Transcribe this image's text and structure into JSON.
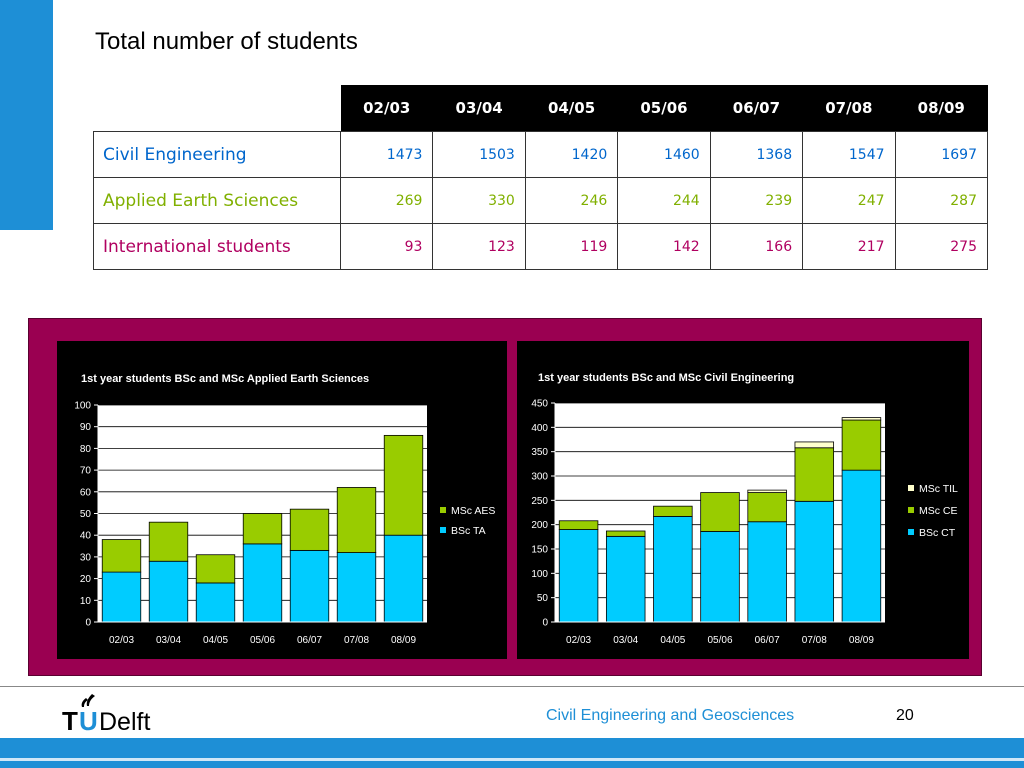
{
  "slide": {
    "title": "Total number of students",
    "footer_text": "Civil Engineering and Geosciences",
    "page_number": "20",
    "logo_text": "TUDelft"
  },
  "colors": {
    "accent_blue": "#1e8fd6",
    "panel": "#9a0051",
    "cyan": "#00ccff",
    "green": "#99cc00",
    "cream": "#ffffcc",
    "civil_text": "#0066cc",
    "aes_text": "#80b000",
    "intl_text": "#b00060"
  },
  "table": {
    "columns": [
      "02/03",
      "03/04",
      "04/05",
      "05/06",
      "06/07",
      "07/08",
      "08/09"
    ],
    "rows": [
      {
        "label": "Civil Engineering",
        "values": [
          "1473",
          "1503",
          "1420",
          "1460",
          "1368",
          "1547",
          "1697"
        ]
      },
      {
        "label": "Applied Earth Sciences",
        "values": [
          "269",
          "330",
          "246",
          "244",
          "239",
          "247",
          "287"
        ]
      },
      {
        "label": "International students",
        "values": [
          "93",
          "123",
          "119",
          "142",
          "166",
          "217",
          "275"
        ]
      }
    ]
  },
  "chart_data": [
    {
      "type": "bar",
      "stacked": true,
      "title": "1st year students BSc and MSc Applied Earth Sciences",
      "categories": [
        "02/03",
        "03/04",
        "04/05",
        "05/06",
        "06/07",
        "07/08",
        "08/09"
      ],
      "series": [
        {
          "name": "BSc TA",
          "color": "#00ccff",
          "values": [
            23,
            28,
            18,
            36,
            33,
            32,
            40
          ]
        },
        {
          "name": "MSc AES",
          "color": "#99cc00",
          "values": [
            15,
            18,
            13,
            14,
            19,
            30,
            46
          ]
        }
      ],
      "ylim": [
        0,
        100
      ],
      "yticks": [
        "0",
        "10",
        "20",
        "30",
        "40",
        "50",
        "60",
        "70",
        "80",
        "90",
        "100"
      ],
      "grid": true,
      "legend": "right"
    },
    {
      "type": "bar",
      "stacked": true,
      "title": "1st year students BSc and MSc Civil Engineering",
      "categories": [
        "02/03",
        "03/04",
        "04/05",
        "05/06",
        "06/07",
        "07/08",
        "08/09"
      ],
      "series": [
        {
          "name": "BSc CT",
          "color": "#00ccff",
          "values": [
            190,
            176,
            217,
            186,
            206,
            248,
            312
          ]
        },
        {
          "name": "MSc CE",
          "color": "#99cc00",
          "values": [
            18,
            11,
            21,
            80,
            60,
            110,
            103
          ]
        },
        {
          "name": "MSc TIL",
          "color": "#ffffcc",
          "values": [
            0,
            0,
            0,
            0,
            5,
            12,
            5
          ]
        }
      ],
      "ylim": [
        0,
        450
      ],
      "yticks": [
        "0",
        "50",
        "100",
        "150",
        "200",
        "250",
        "300",
        "350",
        "400",
        "450"
      ],
      "grid": true,
      "legend": "right"
    }
  ]
}
